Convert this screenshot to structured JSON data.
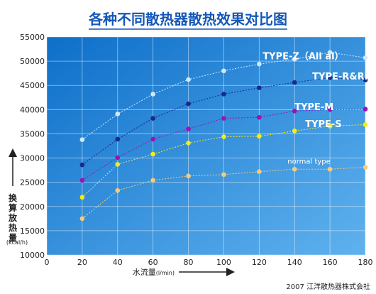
{
  "chart_data": {
    "type": "scatter",
    "title": "各种不同散热器散热效果对比图",
    "xlabel": "水流量",
    "xunit": "(l/min)",
    "ylabel": "换算放热量",
    "yunit": "(kcal/h)",
    "xlim": [
      0,
      180
    ],
    "ylim": [
      10000,
      55000
    ],
    "xticks": [
      0,
      20,
      40,
      60,
      80,
      100,
      120,
      140,
      160,
      180
    ],
    "yticks": [
      10000,
      15000,
      20000,
      25000,
      30000,
      35000,
      40000,
      45000,
      50000,
      55000
    ],
    "grid": true,
    "background": "#3d97e0",
    "x": [
      20,
      40,
      60,
      80,
      100,
      120,
      140,
      160,
      180
    ],
    "series": [
      {
        "name": "TYPE-Z（All al）",
        "color": "#cfe9ff",
        "values": [
          33800,
          39100,
          43200,
          46200,
          48000,
          49400,
          50400,
          51800,
          50700
        ]
      },
      {
        "name": "TYPE-R&RⅡ",
        "color": "#1a2a8a",
        "values": [
          28600,
          33900,
          38200,
          41200,
          43200,
          44500,
          45600,
          46600,
          46100
        ]
      },
      {
        "name": "TYPE-M",
        "color": "#9b12b5",
        "values": [
          25400,
          30100,
          33900,
          36000,
          38200,
          38400,
          39700,
          40000,
          40100
        ]
      },
      {
        "name": "TYPE-S",
        "color": "#f2ee16",
        "values": [
          21900,
          28700,
          30800,
          33100,
          34400,
          34500,
          35600,
          36600,
          36900
        ]
      },
      {
        "name": "normal type",
        "color": "#f6cc7a",
        "values": [
          17500,
          23300,
          25400,
          26300,
          26600,
          27200,
          27700,
          27700,
          28100
        ]
      }
    ]
  },
  "copyright": "2007 江洋散热器株式会社"
}
